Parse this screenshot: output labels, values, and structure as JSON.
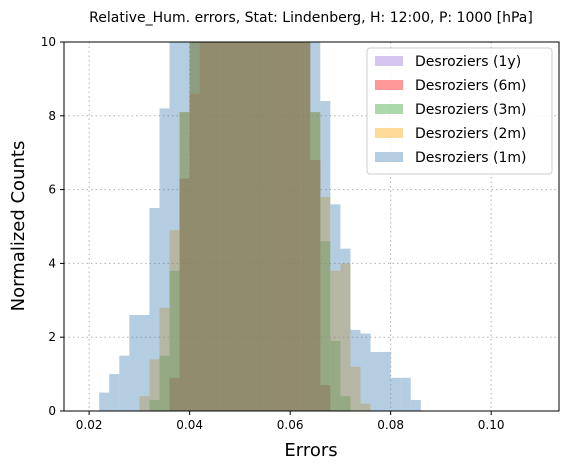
{
  "chart_data": {
    "type": "histogram",
    "title": "Relative_Hum. errors, Stat: Lindenberg, H: 12:00, P: 1000 [hPa]",
    "xlabel": "Errors",
    "ylabel": "Normalized Counts",
    "xlim": [
      0.015,
      0.1135
    ],
    "ylim": [
      0,
      10
    ],
    "xticks": [
      "0.02",
      "0.04",
      "0.06",
      "0.08",
      "0.10"
    ],
    "xtick_values": [
      0.02,
      0.04,
      0.06,
      0.08,
      0.1
    ],
    "yticks": [
      "0",
      "2",
      "4",
      "6",
      "8",
      "10"
    ],
    "ytick_values": [
      0,
      2,
      4,
      6,
      8,
      10
    ],
    "grid": true,
    "legend_position": "top-right",
    "bin_width": 0.002,
    "series": [
      {
        "name": "Desroziers (1y)",
        "color": "#9370db",
        "bins": [
          {
            "x": 0.036,
            "y": 0.9
          },
          {
            "x": 0.038,
            "y": 6.3
          },
          {
            "x": 0.04,
            "y": 10.5
          },
          {
            "x": 0.042,
            "y": 10.5
          },
          {
            "x": 0.044,
            "y": 10.5
          },
          {
            "x": 0.046,
            "y": 10.5
          },
          {
            "x": 0.048,
            "y": 10.5
          },
          {
            "x": 0.05,
            "y": 10.5
          },
          {
            "x": 0.052,
            "y": 10.5
          },
          {
            "x": 0.054,
            "y": 10.5
          },
          {
            "x": 0.056,
            "y": 10.5
          },
          {
            "x": 0.058,
            "y": 10.5
          },
          {
            "x": 0.06,
            "y": 10.5
          },
          {
            "x": 0.062,
            "y": 10.5
          },
          {
            "x": 0.064,
            "y": 6.8
          },
          {
            "x": 0.066,
            "y": 0.7
          }
        ]
      },
      {
        "name": "Desroziers (6m)",
        "color": "#ff0000",
        "bins": [
          {
            "x": 0.036,
            "y": 0.9
          },
          {
            "x": 0.038,
            "y": 6.3
          },
          {
            "x": 0.04,
            "y": 8.6
          },
          {
            "x": 0.042,
            "y": 10.5
          },
          {
            "x": 0.044,
            "y": 10.5
          },
          {
            "x": 0.046,
            "y": 10.5
          },
          {
            "x": 0.048,
            "y": 10.5
          },
          {
            "x": 0.05,
            "y": 10.5
          },
          {
            "x": 0.052,
            "y": 10.5
          },
          {
            "x": 0.054,
            "y": 10.5
          },
          {
            "x": 0.056,
            "y": 10.5
          },
          {
            "x": 0.058,
            "y": 10.5
          },
          {
            "x": 0.06,
            "y": 10.5
          },
          {
            "x": 0.062,
            "y": 10.5
          },
          {
            "x": 0.064,
            "y": 6.8
          },
          {
            "x": 0.066,
            "y": 0.7
          }
        ]
      },
      {
        "name": "Desroziers (3m)",
        "color": "#2ca02c",
        "bins": [
          {
            "x": 0.032,
            "y": 0.3
          },
          {
            "x": 0.034,
            "y": 1.5
          },
          {
            "x": 0.036,
            "y": 3.8
          },
          {
            "x": 0.038,
            "y": 8.1
          },
          {
            "x": 0.04,
            "y": 10.5
          },
          {
            "x": 0.042,
            "y": 10.5
          },
          {
            "x": 0.044,
            "y": 10.5
          },
          {
            "x": 0.046,
            "y": 10.5
          },
          {
            "x": 0.048,
            "y": 10.5
          },
          {
            "x": 0.05,
            "y": 10.5
          },
          {
            "x": 0.052,
            "y": 10.5
          },
          {
            "x": 0.054,
            "y": 10.5
          },
          {
            "x": 0.056,
            "y": 10.5
          },
          {
            "x": 0.058,
            "y": 10.5
          },
          {
            "x": 0.06,
            "y": 10.5
          },
          {
            "x": 0.062,
            "y": 10.5
          },
          {
            "x": 0.064,
            "y": 8.1
          },
          {
            "x": 0.066,
            "y": 4.6
          },
          {
            "x": 0.068,
            "y": 1.9
          },
          {
            "x": 0.07,
            "y": 0.4
          }
        ]
      },
      {
        "name": "Desroziers (2m)",
        "color": "#ffa500",
        "bins": [
          {
            "x": 0.03,
            "y": 0.4
          },
          {
            "x": 0.032,
            "y": 1.4
          },
          {
            "x": 0.034,
            "y": 2.8
          },
          {
            "x": 0.036,
            "y": 4.9
          },
          {
            "x": 0.038,
            "y": 8.1
          },
          {
            "x": 0.04,
            "y": 10.5
          },
          {
            "x": 0.042,
            "y": 10.5
          },
          {
            "x": 0.044,
            "y": 10.5
          },
          {
            "x": 0.046,
            "y": 10.5
          },
          {
            "x": 0.048,
            "y": 10.5
          },
          {
            "x": 0.05,
            "y": 10.5
          },
          {
            "x": 0.052,
            "y": 10.5
          },
          {
            "x": 0.054,
            "y": 10.5
          },
          {
            "x": 0.056,
            "y": 10.5
          },
          {
            "x": 0.058,
            "y": 10.5
          },
          {
            "x": 0.06,
            "y": 10.5
          },
          {
            "x": 0.062,
            "y": 10.5
          },
          {
            "x": 0.064,
            "y": 8.1
          },
          {
            "x": 0.066,
            "y": 5.8
          },
          {
            "x": 0.068,
            "y": 3.8
          },
          {
            "x": 0.07,
            "y": 4.0
          },
          {
            "x": 0.072,
            "y": 1.2
          },
          {
            "x": 0.074,
            "y": 0.2
          }
        ]
      },
      {
        "name": "Desroziers (1m)",
        "color": "#4682b4",
        "bins": [
          {
            "x": 0.022,
            "y": 0.5
          },
          {
            "x": 0.024,
            "y": 1.0
          },
          {
            "x": 0.026,
            "y": 1.5
          },
          {
            "x": 0.028,
            "y": 2.6
          },
          {
            "x": 0.03,
            "y": 2.6
          },
          {
            "x": 0.032,
            "y": 5.5
          },
          {
            "x": 0.034,
            "y": 8.2
          },
          {
            "x": 0.036,
            "y": 10.5
          },
          {
            "x": 0.038,
            "y": 10.5
          },
          {
            "x": 0.04,
            "y": 10.5
          },
          {
            "x": 0.042,
            "y": 10.5
          },
          {
            "x": 0.044,
            "y": 10.5
          },
          {
            "x": 0.046,
            "y": 10.5
          },
          {
            "x": 0.048,
            "y": 10.5
          },
          {
            "x": 0.05,
            "y": 10.5
          },
          {
            "x": 0.052,
            "y": 10.5
          },
          {
            "x": 0.054,
            "y": 10.5
          },
          {
            "x": 0.056,
            "y": 10.5
          },
          {
            "x": 0.058,
            "y": 10.5
          },
          {
            "x": 0.06,
            "y": 10.5
          },
          {
            "x": 0.062,
            "y": 10.5
          },
          {
            "x": 0.064,
            "y": 10.5
          },
          {
            "x": 0.066,
            "y": 8.4
          },
          {
            "x": 0.068,
            "y": 5.6
          },
          {
            "x": 0.07,
            "y": 4.4
          },
          {
            "x": 0.072,
            "y": 2.2
          },
          {
            "x": 0.074,
            "y": 2.1
          },
          {
            "x": 0.076,
            "y": 1.6
          },
          {
            "x": 0.078,
            "y": 1.6
          },
          {
            "x": 0.08,
            "y": 0.9
          },
          {
            "x": 0.082,
            "y": 0.9
          },
          {
            "x": 0.084,
            "y": 0.3
          }
        ]
      }
    ]
  }
}
